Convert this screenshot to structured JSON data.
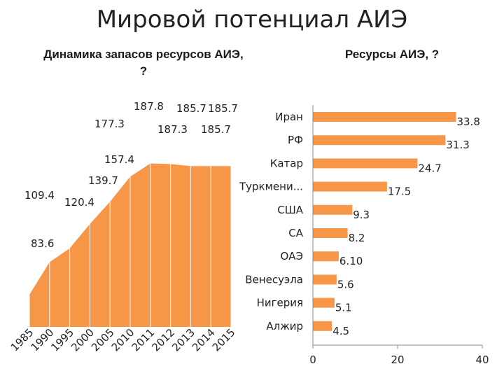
{
  "title": "Мировой потенциал АИЭ",
  "chart_data": [
    {
      "type": "area",
      "title": "Динамика запасов ресурсов АИЭ, ?",
      "x": [
        "1985",
        "1990",
        "1995",
        "2000",
        "2005",
        "2010",
        "2011",
        "2012",
        "2013",
        "2014",
        "2015"
      ],
      "values": [
        83.6,
        109.4,
        120.4,
        139.7,
        157.4,
        177.3,
        187.8,
        187.3,
        185.7,
        185.7,
        185.7
      ],
      "data_labels": [
        "83.6",
        "109.4",
        "120.4",
        "139.7",
        "157.4",
        "177.3",
        "187.8",
        "187.3",
        "185.7",
        "185.7",
        "185.7"
      ],
      "color": "#F79646",
      "grid": false
    },
    {
      "type": "bar",
      "orientation": "horizontal",
      "title": "Ресурсы АИЭ, ?",
      "categories": [
        "Иран",
        "РФ",
        "Катар",
        "Туркмени...",
        "США",
        "СА",
        "ОАЭ",
        "Венесуэла",
        "Нигерия",
        "Алжир"
      ],
      "values": [
        33.8,
        31.3,
        24.7,
        17.5,
        9.3,
        8.2,
        6.1,
        5.6,
        5.1,
        4.5
      ],
      "data_labels": [
        "33.8",
        "31.3",
        "24.7",
        "17.5",
        "9.3",
        "8.2",
        "6.10",
        "5.6",
        "5.1",
        "4.5"
      ],
      "xticks": [
        "0",
        "20",
        "40"
      ],
      "xlim": [
        0,
        40
      ],
      "color": "#F79646",
      "grid": false
    }
  ]
}
